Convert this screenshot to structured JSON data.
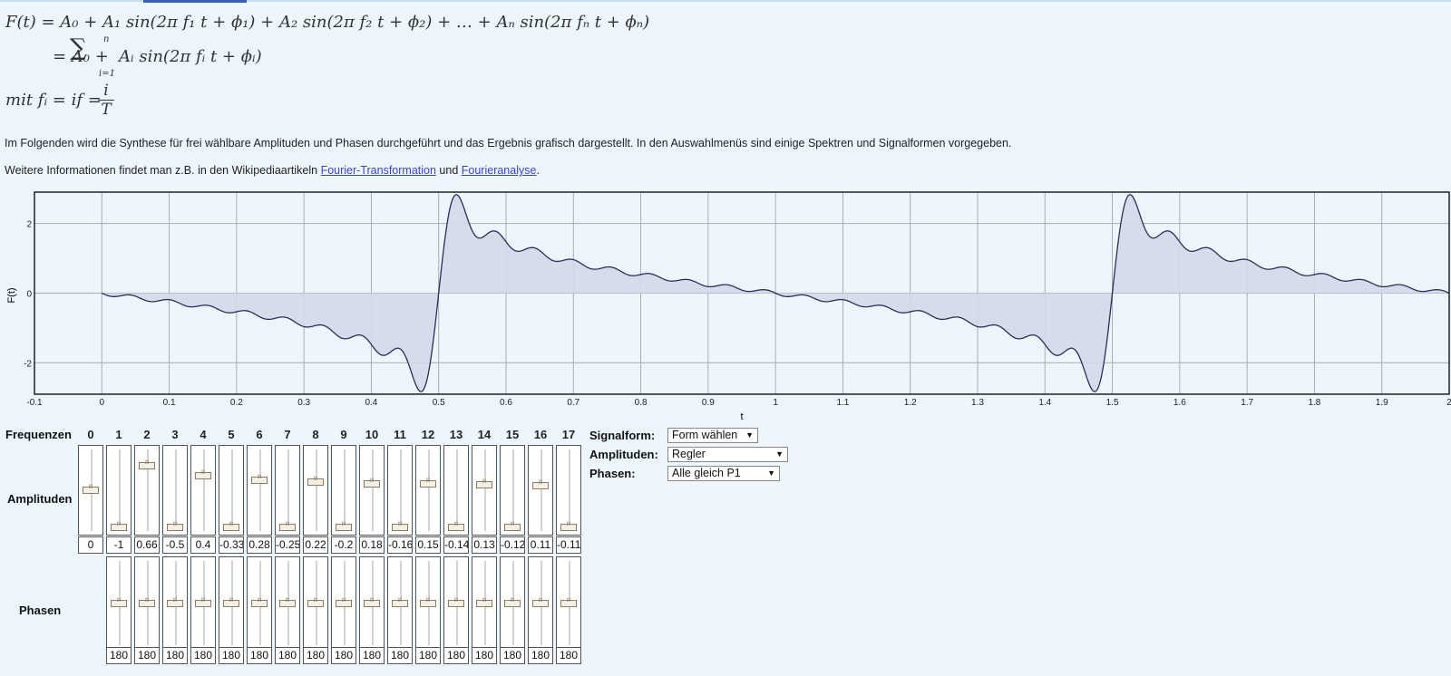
{
  "formula": {
    "line1": "F(t)   = A₀ + A₁ sin(2π f₁ t + ϕ₁) + A₂ sin(2π f₂ t + ϕ₂) + … + Aₙ sin(2π fₙ t + ϕₙ)",
    "line2": "= A₀ +",
    "line2_rest": "Aᵢ sin(2π fᵢ t + ϕᵢ)",
    "sum_top": "n",
    "sum_bottom": "i=1",
    "line3": "mit fᵢ = if =",
    "frac_num": "i",
    "frac_den": "T"
  },
  "text": {
    "intro": "Im Folgenden wird die Synthese für frei wählbare Amplituden und Phasen durchgeführt und das Ergebnis grafisch dargestellt. In den Auswahlmenüs sind einige Spektren und Signalformen vorgegeben.",
    "more_prefix": "Weitere Informationen findet man z.B. in den Wikipediaartikeln",
    "link1": "Fourier-Transformation",
    "more_and": "und",
    "link2": "Fourieranalyse",
    "more_suffix": "."
  },
  "chart_data": {
    "type": "area",
    "xlabel": "t",
    "ylabel": "F(t)",
    "xlim": [
      -0.1,
      2.0
    ],
    "ylim": [
      -2.9,
      2.9
    ],
    "xticks": [
      "-0.1",
      "0",
      "0.1",
      "0.2",
      "0.3",
      "0.4",
      "0.5",
      "0.6",
      "0.7",
      "0.8",
      "0.9",
      "1",
      "1.1",
      "1.2",
      "1.3",
      "1.4",
      "1.5",
      "1.6",
      "1.7",
      "1.8",
      "1.9",
      "2"
    ],
    "yticks": [
      "2",
      "0",
      "-2"
    ],
    "grid": true,
    "series": [
      {
        "amplitudes": [
          0,
          -1,
          0.66,
          -0.5,
          0.4,
          -0.33,
          0.28,
          -0.25,
          0.22,
          -0.2,
          0.18,
          -0.16,
          0.15,
          -0.14,
          0.13,
          -0.12,
          0.11,
          -0.11
        ],
        "phases": [
          180,
          180,
          180,
          180,
          180,
          180,
          180,
          180,
          180,
          180,
          180,
          180,
          180,
          180,
          180,
          180,
          180
        ],
        "x_from": 0,
        "x_to": 2
      }
    ]
  },
  "controls": {
    "freq_label": "Frequenzen",
    "amp_label": "Amplituden",
    "phase_label": "Phasen",
    "frequencies": [
      "0",
      "1",
      "2",
      "3",
      "4",
      "5",
      "6",
      "7",
      "8",
      "9",
      "10",
      "11",
      "12",
      "13",
      "14",
      "15",
      "16",
      "17"
    ],
    "amplitude_values": [
      "0",
      "-1",
      "0.66",
      "-0.5",
      "0.4",
      "-0.33",
      "0.28",
      "-0.25",
      "0.22",
      "-0.2",
      "0.18",
      "-0.16",
      "0.15",
      "-0.14",
      "0.13",
      "-0.12",
      "0.11",
      "-0.11"
    ],
    "amplitude_levels": [
      0.5,
      0.0,
      0.83,
      0.0,
      0.7,
      0.0,
      0.64,
      0.0,
      0.61,
      0.0,
      0.59,
      0.0,
      0.58,
      0.0,
      0.57,
      0.0,
      0.56,
      0.0
    ],
    "phase_values": [
      "180",
      "180",
      "180",
      "180",
      "180",
      "180",
      "180",
      "180",
      "180",
      "180",
      "180",
      "180",
      "180",
      "180",
      "180",
      "180",
      "180"
    ],
    "phase_levels": [
      0.5,
      0.5,
      0.5,
      0.5,
      0.5,
      0.5,
      0.5,
      0.5,
      0.5,
      0.5,
      0.5,
      0.5,
      0.5,
      0.5,
      0.5,
      0.5,
      0.5
    ]
  },
  "selects": {
    "signal_label": "Signalform:",
    "signal_value": "Form wählen",
    "amp_label": "Amplituden:",
    "amp_value": "Regler",
    "phase_label": "Phasen:",
    "phase_value": "Alle gleich P1",
    "caret": "▼"
  },
  "colors": {
    "background": "#eef6fd",
    "curve": "#2a2f5a",
    "fill": "#d3d9e8",
    "grid": "#a9acb3",
    "link": "#3b44c9"
  }
}
